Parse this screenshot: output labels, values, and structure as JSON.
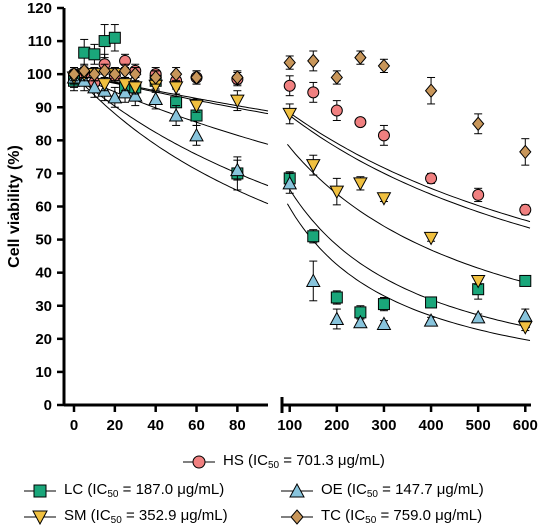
{
  "chart_data": {
    "type": "scatter",
    "ylabel": "Cell viability (%)",
    "ylim": [
      0,
      120
    ],
    "yticks": [
      "0",
      "10",
      "20",
      "30",
      "40",
      "50",
      "60",
      "70",
      "80",
      "90",
      "100",
      "110",
      "120"
    ],
    "x_segments": [
      {
        "range": [
          0,
          95
        ],
        "ticks": [
          "0",
          "20",
          "40",
          "60",
          "80"
        ],
        "tick_values": [
          0,
          20,
          40,
          60,
          80
        ]
      },
      {
        "range": [
          90,
          610
        ],
        "ticks": [
          "100",
          "200",
          "300",
          "400",
          "500",
          "600"
        ],
        "tick_values": [
          100,
          200,
          300,
          400,
          500,
          600
        ]
      }
    ],
    "series": [
      {
        "name": "HS",
        "ic50_value": "701.3",
        "marker": "circle",
        "color": "#f08080",
        "x": [
          0,
          5,
          10,
          15,
          20,
          25,
          30,
          40,
          50,
          60,
          80,
          100,
          150,
          200,
          250,
          300,
          400,
          500,
          600
        ],
        "y": [
          100,
          100,
          97.5,
          103,
          99.5,
          104,
          101,
          100,
          98,
          99,
          98.5,
          96.5,
          94.5,
          89,
          85.5,
          81.5,
          68.5,
          63.5,
          59
        ],
        "err": [
          2,
          2,
          2,
          3,
          2,
          2,
          2,
          2,
          2,
          2,
          2,
          3,
          3,
          3,
          1,
          3,
          1.5,
          2,
          1.5
        ]
      },
      {
        "name": "LC",
        "ic50_value": "187.0",
        "marker": "square",
        "color": "#1aa67a",
        "x": [
          0,
          5,
          10,
          15,
          20,
          25,
          30,
          40,
          50,
          60,
          80,
          100,
          150,
          200,
          250,
          300,
          400,
          500,
          600
        ],
        "y": [
          98,
          106.5,
          106,
          110,
          111,
          96,
          96,
          98,
          91.5,
          87.5,
          70,
          68.5,
          51,
          32.5,
          28,
          30.5,
          31,
          35,
          37.5
        ],
        "err": [
          3,
          4,
          3,
          5,
          4,
          3,
          3,
          3,
          4,
          3,
          5,
          2,
          2,
          2,
          2,
          2,
          1,
          3,
          1
        ]
      },
      {
        "name": "OE",
        "ic50_value": "147.7",
        "marker": "triangle-up",
        "color": "#88c4dc",
        "x": [
          0,
          5,
          10,
          15,
          20,
          25,
          30,
          40,
          50,
          60,
          80,
          100,
          150,
          200,
          250,
          300,
          400,
          500,
          600
        ],
        "y": [
          99,
          98,
          96,
          95,
          93,
          94.5,
          93.5,
          92.5,
          87.5,
          81.5,
          71,
          67,
          37.5,
          26,
          25,
          24.5,
          25.5,
          26.5,
          27
        ],
        "err": [
          3,
          3,
          3,
          3,
          3,
          3,
          3,
          3,
          3,
          3,
          3,
          3,
          6,
          3,
          1,
          1,
          1,
          1,
          2
        ]
      },
      {
        "name": "SM",
        "ic50_value": "352.9",
        "marker": "triangle-down",
        "color": "#f0c040",
        "x": [
          0,
          5,
          10,
          15,
          20,
          25,
          30,
          40,
          50,
          60,
          80,
          100,
          150,
          200,
          250,
          300,
          400,
          500,
          600
        ],
        "y": [
          99,
          100,
          100,
          97,
          100,
          97,
          96,
          96.5,
          96,
          90.5,
          92,
          88,
          72.5,
          64.5,
          67,
          62.5,
          50.5,
          37.5,
          23.5
        ],
        "err": [
          2,
          2,
          2,
          2,
          2,
          2,
          2,
          2,
          2,
          2,
          3,
          3,
          3,
          4,
          2,
          1,
          1,
          1,
          1
        ]
      },
      {
        "name": "TC",
        "ic50_value": "759.0",
        "marker": "diamond",
        "color": "#c8965a",
        "x": [
          0,
          5,
          10,
          15,
          20,
          25,
          30,
          40,
          50,
          60,
          80,
          100,
          150,
          200,
          250,
          300,
          400,
          500,
          600
        ],
        "y": [
          100,
          101,
          100,
          101,
          100,
          101,
          100,
          99,
          100,
          99,
          99,
          103.5,
          104,
          99,
          105,
          102.5,
          95,
          85,
          76.5
        ],
        "err": [
          2,
          2,
          2,
          2,
          2,
          2,
          2,
          2,
          2,
          2,
          2,
          2,
          3,
          2,
          2,
          2,
          4,
          3,
          4
        ]
      }
    ]
  },
  "legend": {
    "prefix_ic": "IC",
    "sub": "50",
    "unit": " μg/mL)",
    "eq": " = "
  }
}
